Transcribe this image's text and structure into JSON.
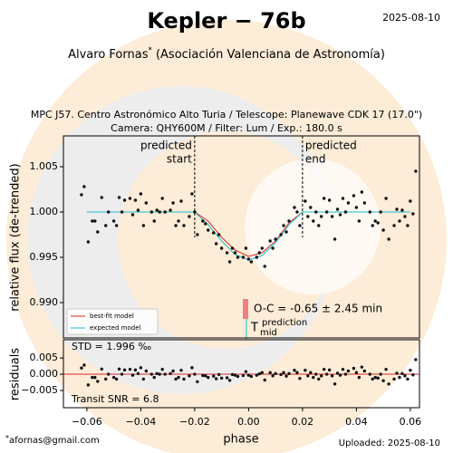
{
  "header": {
    "title": "Kepler − 76b",
    "date": "2025-08-10",
    "author": "Alvaro Fornas",
    "author_mark": "*",
    "affiliation": "(Asociación Valenciana de Astronomía)"
  },
  "footer": {
    "email": "afornas@gmail.com",
    "uploaded": "Uploaded: 2025-08-10"
  },
  "chart_data": [
    {
      "type": "scatter",
      "title": [
        "MPC J57. Centro Astronómico Alto Turia / Telescope: Planewave CDK 17 (17.0\")",
        "Camera: QHY600M / Filter: Lum / Exp.: 180.0 s"
      ],
      "ylabel": "relative flux (de-trended)",
      "xlim": [
        -0.0687,
        0.0634
      ],
      "ylim": [
        0.9861,
        1.0084
      ],
      "yticks": [
        {
          "value": 0.99,
          "label": "0.990"
        },
        0.995,
        {
          "value": 1.0,
          "label": "1.000"
        },
        1.005
      ],
      "color": "#111111",
      "x": [
        -0.062,
        -0.061,
        -0.0595,
        -0.058,
        -0.057,
        -0.056,
        -0.0545,
        -0.053,
        -0.052,
        -0.05,
        -0.049,
        -0.048,
        -0.047,
        -0.046,
        -0.044,
        -0.043,
        -0.042,
        -0.041,
        -0.04,
        -0.039,
        -0.038,
        -0.036,
        -0.035,
        -0.034,
        -0.033,
        -0.032,
        -0.031,
        -0.029,
        -0.028,
        -0.027,
        -0.026,
        -0.025,
        -0.024,
        -0.022,
        -0.021,
        -0.02,
        -0.019,
        -0.017,
        -0.016,
        -0.015,
        -0.013,
        -0.012,
        -0.011,
        -0.01,
        -0.008,
        -0.007,
        -0.006,
        -0.005,
        -0.004,
        -0.002,
        -0.001,
        0.0,
        0.001,
        0.003,
        0.004,
        0.005,
        0.006,
        0.008,
        0.009,
        0.01,
        0.012,
        0.013,
        0.014,
        0.015,
        0.017,
        0.018,
        0.019,
        0.021,
        0.022,
        0.023,
        0.024,
        0.025,
        0.026,
        0.027,
        0.028,
        0.029,
        0.03,
        0.031,
        0.032,
        0.033,
        0.034,
        0.035,
        0.036,
        0.037,
        0.039,
        0.04,
        0.041,
        0.042,
        0.043,
        0.045,
        0.046,
        0.047,
        0.048,
        0.049,
        0.05,
        0.051,
        0.052,
        0.054,
        0.055,
        0.056,
        0.057,
        0.058,
        0.059,
        0.06,
        0.061,
        0.062
      ],
      "values": [
        1.0019,
        1.0028,
        0.9967,
        0.999,
        0.999,
        0.9978,
        1.0016,
        0.9985,
        1.0,
        0.999,
        0.9985,
        1.0016,
        1.0,
        1.0013,
        1.0015,
        0.9997,
        1.0013,
        1.0002,
        1.002,
        0.9985,
        1.001,
        1.0,
        0.999,
        1.0002,
        1.0,
        1.0015,
        1.0,
        1.0002,
        1.001,
        0.9985,
        0.999,
        1.0012,
        0.9985,
        0.9995,
        1.002,
        1.0,
        0.9975,
        0.999,
        0.9987,
        0.998,
        0.9977,
        0.9965,
        0.9975,
        0.996,
        0.9955,
        0.9945,
        0.996,
        0.9955,
        0.995,
        0.995,
        0.996,
        0.9948,
        0.9945,
        0.995,
        0.9955,
        0.996,
        0.994,
        0.9968,
        0.996,
        0.997,
        0.9975,
        0.9985,
        0.9978,
        0.999,
        1.0005,
        1.0,
        0.9985,
        1.0012,
        0.9995,
        1.0005,
        0.999,
        1.0,
        0.9985,
        0.9995,
        1.0015,
        1.0,
        1.0013,
        0.9995,
        0.997,
        1.0003,
        0.9997,
        1.0015,
        1.0,
        1.001,
        1.0018,
        1.0005,
        0.999,
        1.0022,
        1.001,
        1.0,
        0.9985,
        0.999,
        0.9988,
        1.0,
        0.998,
        1.0015,
        0.997,
        0.9985,
        1.0003,
        0.999,
        1.0002,
        0.9995,
        0.9985,
        1.0012,
        0.9998,
        1.0045
      ],
      "series": [
        {
          "name": "best-fit model",
          "color": "#d62728",
          "x": [
            -0.06,
            -0.02,
            -0.015,
            -0.01,
            -0.005,
            0.0,
            0.005,
            0.01,
            0.015,
            0.02,
            0.06
          ],
          "values": [
            1.0,
            1.0,
            0.999,
            0.9972,
            0.9958,
            0.9951,
            0.9955,
            0.9968,
            0.9988,
            1.0,
            1.0
          ]
        },
        {
          "name": "expected model",
          "color": "#17becf",
          "x": [
            -0.06,
            -0.02,
            -0.015,
            -0.01,
            -0.005,
            0.0,
            0.005,
            0.01,
            0.015,
            0.02,
            0.06
          ],
          "values": [
            1.0,
            1.0,
            0.9986,
            0.9968,
            0.9953,
            0.9947,
            0.9952,
            0.9966,
            0.9986,
            1.0,
            1.0
          ]
        }
      ],
      "legend": "lower left",
      "markers": [
        {
          "label": [
            "predicted",
            "start"
          ],
          "x": -0.02
        },
        {
          "label": [
            "predicted",
            "end"
          ],
          "x": 0.02
        }
      ],
      "oc_label": "O-C = -0.65 ± 2.45 min",
      "tmid": {
        "symbol": "T",
        "sub": "mid",
        "sup": "prediction"
      }
    },
    {
      "type": "scatter",
      "ylabel": "residuals",
      "xlabel": "phase",
      "xlim": [
        -0.0687,
        0.0634
      ],
      "ylim": [
        -0.0103,
        0.0106
      ],
      "xticks": [
        {
          "value": -0.06,
          "label": "−0.06"
        },
        {
          "value": -0.04,
          "label": "−0.04"
        },
        {
          "value": -0.02,
          "label": "−0.02"
        },
        {
          "value": 0.0,
          "label": "0.00"
        },
        0.02,
        0.04,
        0.06
      ],
      "yticks": [
        {
          "value": -0.005,
          "label": "−0.005"
        },
        {
          "value": 0.0,
          "label": "0.000"
        },
        0.005
      ],
      "color": "#111111",
      "zero_color": "#d62728",
      "x": [
        -0.062,
        -0.061,
        -0.0595,
        -0.058,
        -0.057,
        -0.056,
        -0.0545,
        -0.053,
        -0.052,
        -0.05,
        -0.049,
        -0.048,
        -0.047,
        -0.046,
        -0.044,
        -0.043,
        -0.042,
        -0.041,
        -0.04,
        -0.039,
        -0.038,
        -0.036,
        -0.035,
        -0.034,
        -0.033,
        -0.032,
        -0.031,
        -0.029,
        -0.028,
        -0.027,
        -0.026,
        -0.025,
        -0.024,
        -0.022,
        -0.021,
        -0.02,
        -0.019,
        -0.017,
        -0.016,
        -0.015,
        -0.013,
        -0.012,
        -0.011,
        -0.01,
        -0.008,
        -0.007,
        -0.006,
        -0.005,
        -0.004,
        -0.002,
        -0.001,
        0.0,
        0.001,
        0.003,
        0.004,
        0.005,
        0.006,
        0.008,
        0.009,
        0.01,
        0.012,
        0.013,
        0.014,
        0.015,
        0.017,
        0.018,
        0.019,
        0.021,
        0.022,
        0.023,
        0.024,
        0.025,
        0.026,
        0.027,
        0.028,
        0.029,
        0.03,
        0.031,
        0.032,
        0.033,
        0.034,
        0.035,
        0.036,
        0.037,
        0.039,
        0.04,
        0.041,
        0.042,
        0.043,
        0.045,
        0.046,
        0.047,
        0.048,
        0.049,
        0.05,
        0.051,
        0.052,
        0.054,
        0.055,
        0.056,
        0.057,
        0.058,
        0.059,
        0.06,
        0.061,
        0.062
      ],
      "values": [
        0.0019,
        0.0028,
        -0.0033,
        -0.001,
        -0.001,
        -0.0022,
        0.0016,
        -0.0015,
        0.0,
        -0.001,
        -0.0015,
        0.0016,
        0.0,
        0.0013,
        0.0015,
        -0.0003,
        0.0013,
        0.0002,
        0.002,
        -0.0015,
        0.001,
        0.0,
        -0.001,
        0.0002,
        0.0,
        0.0015,
        0.0,
        0.0002,
        0.001,
        -0.0015,
        -0.001,
        0.0012,
        -0.0015,
        -0.0005,
        0.002,
        0.0,
        -0.0023,
        -0.0004,
        -0.0005,
        -0.001,
        -0.0006,
        -0.0014,
        -0.0001,
        -0.0012,
        -0.0011,
        -0.0019,
        -0.0001,
        -0.0003,
        -0.0007,
        -0.0004,
        0.0008,
        -0.0003,
        -0.0007,
        -0.0003,
        0.0001,
        0.0005,
        -0.0018,
        0.0005,
        -0.0005,
        0.0002,
        -0.0001,
        0.0005,
        -0.0006,
        0.0002,
        0.0012,
        0.0005,
        -0.0013,
        0.0012,
        -0.0005,
        0.0005,
        -0.001,
        0.0,
        -0.0015,
        -0.0005,
        0.0015,
        0.0,
        0.0013,
        -0.0005,
        -0.003,
        0.0003,
        -0.0003,
        0.0015,
        0.0,
        0.001,
        0.0018,
        0.0005,
        -0.001,
        0.0022,
        0.001,
        0.0,
        -0.0015,
        -0.001,
        -0.0012,
        0.0,
        -0.002,
        0.0015,
        -0.003,
        -0.0015,
        0.0003,
        -0.001,
        0.0002,
        -0.0005,
        -0.0015,
        0.0012,
        -0.0002,
        0.0045
      ],
      "std_label": "STD = 1.996 ‰",
      "snr_label": "Transit SNR = 6.8"
    }
  ]
}
